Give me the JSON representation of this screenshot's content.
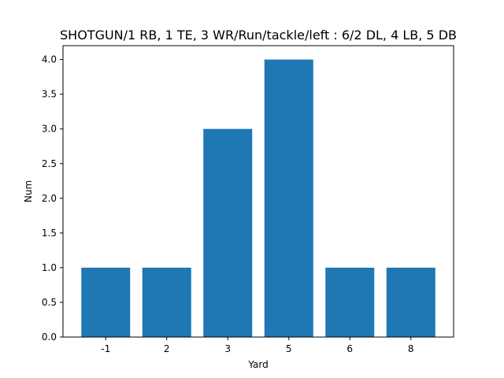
{
  "chart_data": {
    "type": "bar",
    "title": "SHOTGUN/1 RB, 1 TE, 3 WR/Run/tackle/left : 6/2 DL, 4 LB, 5 DB",
    "xlabel": "Yard",
    "ylabel": "Num",
    "categories": [
      "-1",
      "2",
      "3",
      "5",
      "6",
      "8"
    ],
    "values": [
      1,
      1,
      3,
      4,
      1,
      1
    ],
    "ylim": [
      0,
      4.2
    ],
    "yticks": [
      "0.0",
      "0.5",
      "1.0",
      "1.5",
      "2.0",
      "2.5",
      "3.0",
      "3.5",
      "4.0"
    ],
    "bar_color": "#1f77b4",
    "grid": false,
    "legend": "none"
  }
}
